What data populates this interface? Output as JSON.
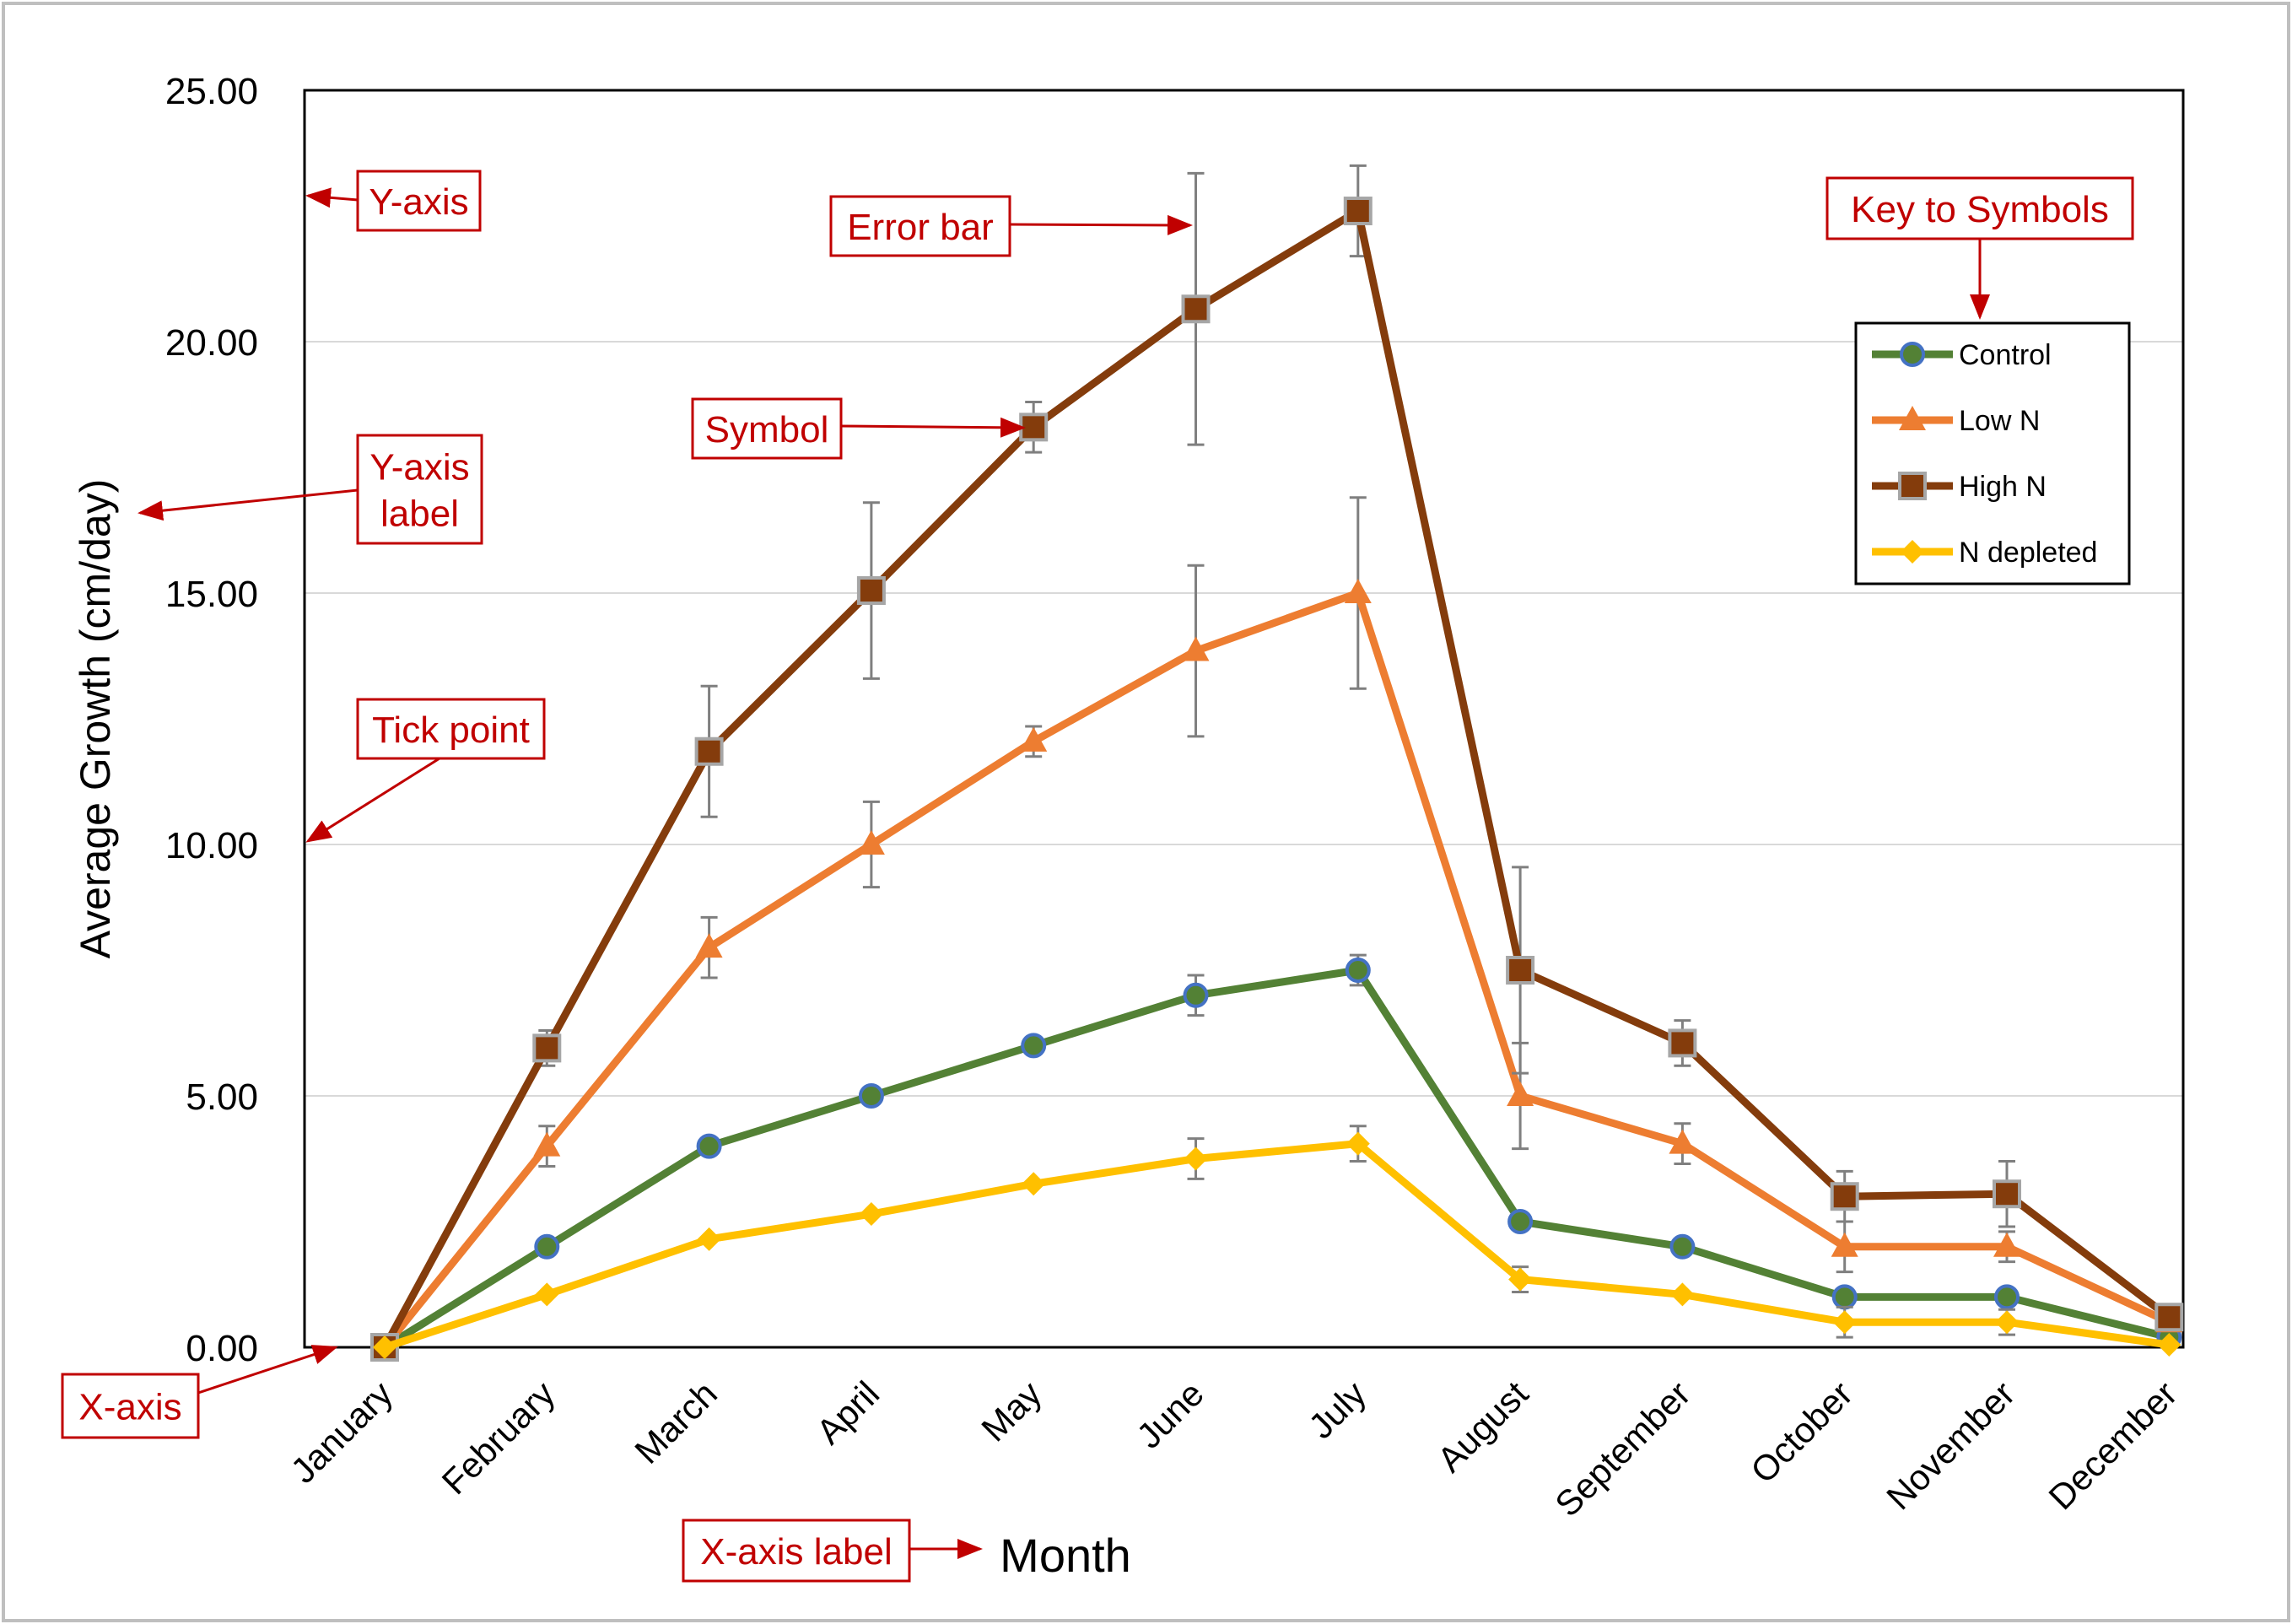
{
  "chart_data": {
    "type": "line",
    "xlabel": "Month",
    "ylabel": "Average Growth (cm/day)",
    "categories": [
      "January",
      "February",
      "March",
      "April",
      "May",
      "June",
      "July",
      "August",
      "September",
      "October",
      "November",
      "December"
    ],
    "ylim": [
      0,
      25
    ],
    "yticks": [
      "0.00",
      "5.00",
      "10.00",
      "15.00",
      "20.00",
      "25.00"
    ],
    "grid": true,
    "legend_position": "top-right",
    "series": [
      {
        "name": "Control",
        "color": "#538135",
        "marker_color": "#4472c4",
        "marker": "circle",
        "values": [
          0,
          2,
          4,
          5,
          6,
          7,
          7.5,
          2.5,
          2,
          1,
          1,
          0.2
        ],
        "error": [
          0,
          0,
          0,
          0,
          0,
          0.4,
          0.3,
          0,
          0,
          0,
          0,
          0
        ]
      },
      {
        "name": "Low N",
        "color": "#ed7d31",
        "marker_color": "#ed7d31",
        "marker": "triangle",
        "values": [
          0,
          4,
          7.95,
          10,
          12.05,
          13.85,
          15,
          5,
          4.05,
          2,
          2,
          0.5
        ],
        "error": [
          0,
          0.4,
          0.6,
          0.85,
          0.3,
          1.7,
          1.9,
          1.05,
          0.4,
          0.5,
          0.3,
          0
        ]
      },
      {
        "name": "High N",
        "color": "#843c0c",
        "marker_color": "#843c0c",
        "marker": "square",
        "values": [
          0,
          5.95,
          11.85,
          15.05,
          18.3,
          20.65,
          22.6,
          7.5,
          6.05,
          3,
          3.05,
          0.6
        ],
        "error": [
          0,
          0.35,
          1.3,
          1.75,
          0.5,
          2.7,
          0.9,
          2.05,
          0.45,
          0.5,
          0.65,
          0
        ]
      },
      {
        "name": "N depleted",
        "color": "#ffc000",
        "marker_color": "#ffc000",
        "marker": "diamond",
        "values": [
          0,
          1.05,
          2.15,
          2.65,
          3.25,
          3.75,
          4.05,
          1.35,
          1.05,
          0.5,
          0.5,
          0.05
        ],
        "error": [
          0,
          0,
          0,
          0,
          0,
          0.4,
          0.35,
          0.25,
          0,
          0.3,
          0.25,
          0
        ]
      }
    ],
    "annotations": {
      "y_axis": "Y-axis",
      "error_bar": "Error bar",
      "key": "Key to Symbols",
      "symbol": "Symbol",
      "y_axis_label_line1": "Y-axis",
      "y_axis_label_line2": "label",
      "tick_point": "Tick point",
      "x_axis": "X-axis",
      "x_axis_label": "X-axis label"
    },
    "annotation_color": "#c00000"
  }
}
